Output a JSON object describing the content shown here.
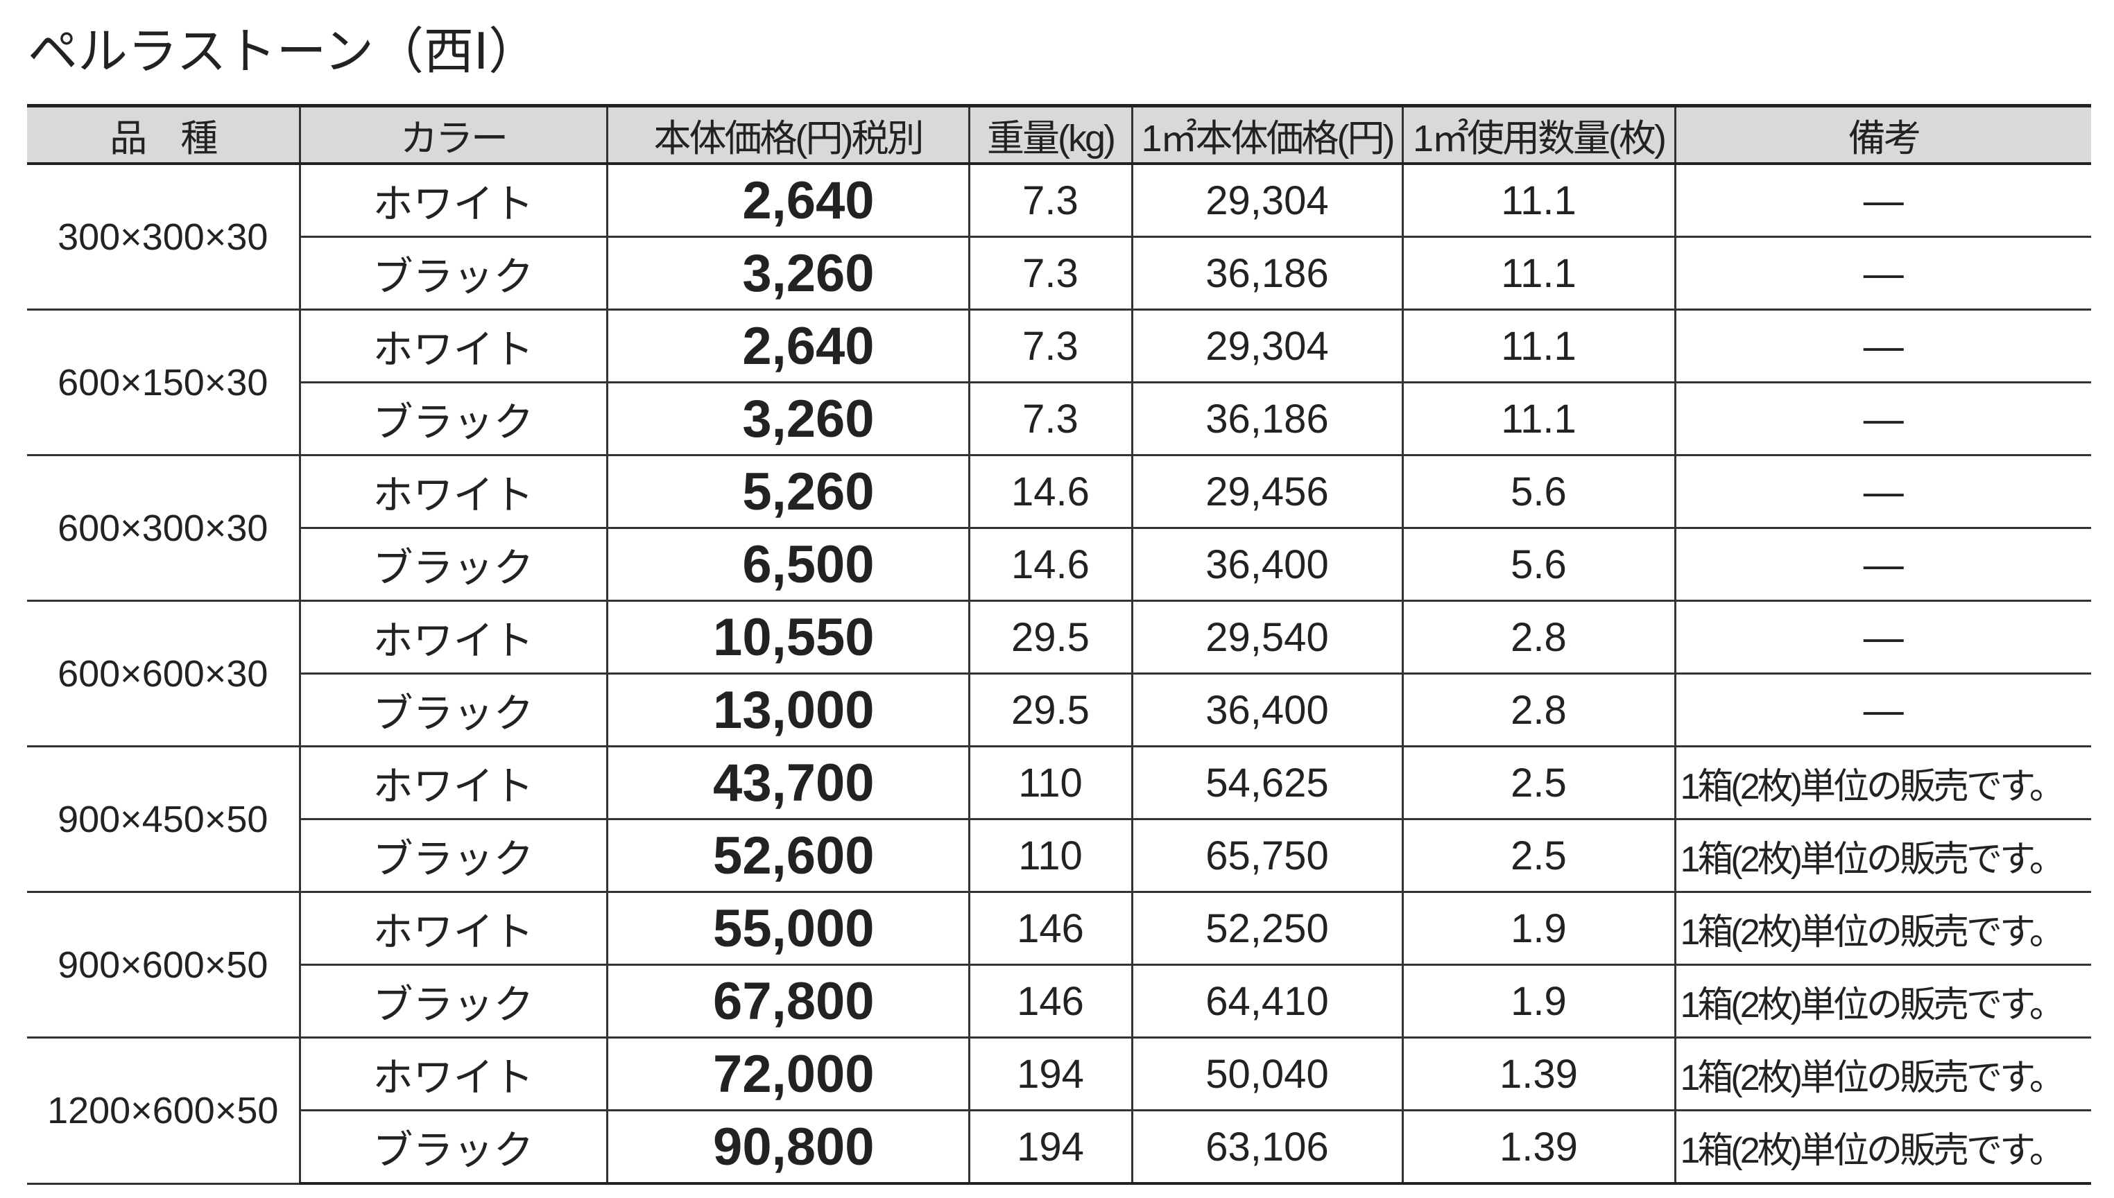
{
  "title": "ペルラストーン（西Ⅰ）",
  "table": {
    "header": [
      "品　種",
      "カラー",
      "本体価格(円)税別",
      "重量(kg)",
      "1㎡本体価格(円)",
      "1㎡使用数量(枚)",
      "備考"
    ],
    "groups": [
      {
        "size": "300×300×30",
        "rows": [
          [
            "ホワイト",
            "2,640",
            "7.3",
            "29,304",
            "11.1",
            "—"
          ],
          [
            "ブラック",
            "3,260",
            "7.3",
            "36,186",
            "11.1",
            "—"
          ]
        ]
      },
      {
        "size": "600×150×30",
        "rows": [
          [
            "ホワイト",
            "2,640",
            "7.3",
            "29,304",
            "11.1",
            "—"
          ],
          [
            "ブラック",
            "3,260",
            "7.3",
            "36,186",
            "11.1",
            "—"
          ]
        ]
      },
      {
        "size": "600×300×30",
        "rows": [
          [
            "ホワイト",
            "5,260",
            "14.6",
            "29,456",
            "5.6",
            "—"
          ],
          [
            "ブラック",
            "6,500",
            "14.6",
            "36,400",
            "5.6",
            "—"
          ]
        ]
      },
      {
        "size": "600×600×30",
        "rows": [
          [
            "ホワイト",
            "10,550",
            "29.5",
            "29,540",
            "2.8",
            "—"
          ],
          [
            "ブラック",
            "13,000",
            "29.5",
            "36,400",
            "2.8",
            "—"
          ]
        ]
      },
      {
        "size": "900×450×50",
        "rows": [
          [
            "ホワイト",
            "43,700",
            "110",
            "54,625",
            "2.5",
            "1箱(2枚)単位の販売です。"
          ],
          [
            "ブラック",
            "52,600",
            "110",
            "65,750",
            "2.5",
            "1箱(2枚)単位の販売です。"
          ]
        ]
      },
      {
        "size": "900×600×50",
        "rows": [
          [
            "ホワイト",
            "55,000",
            "146",
            "52,250",
            "1.9",
            "1箱(2枚)単位の販売です。"
          ],
          [
            "ブラック",
            "67,800",
            "146",
            "64,410",
            "1.9",
            "1箱(2枚)単位の販売です。"
          ]
        ]
      },
      {
        "size": "1200×600×50",
        "rows": [
          [
            "ホワイト",
            "72,000",
            "194",
            "50,040",
            "1.39",
            "1箱(2枚)単位の販売です。"
          ],
          [
            "ブラック",
            "90,800",
            "194",
            "63,106",
            "1.39",
            "1箱(2枚)単位の販売です。"
          ]
        ]
      }
    ]
  }
}
